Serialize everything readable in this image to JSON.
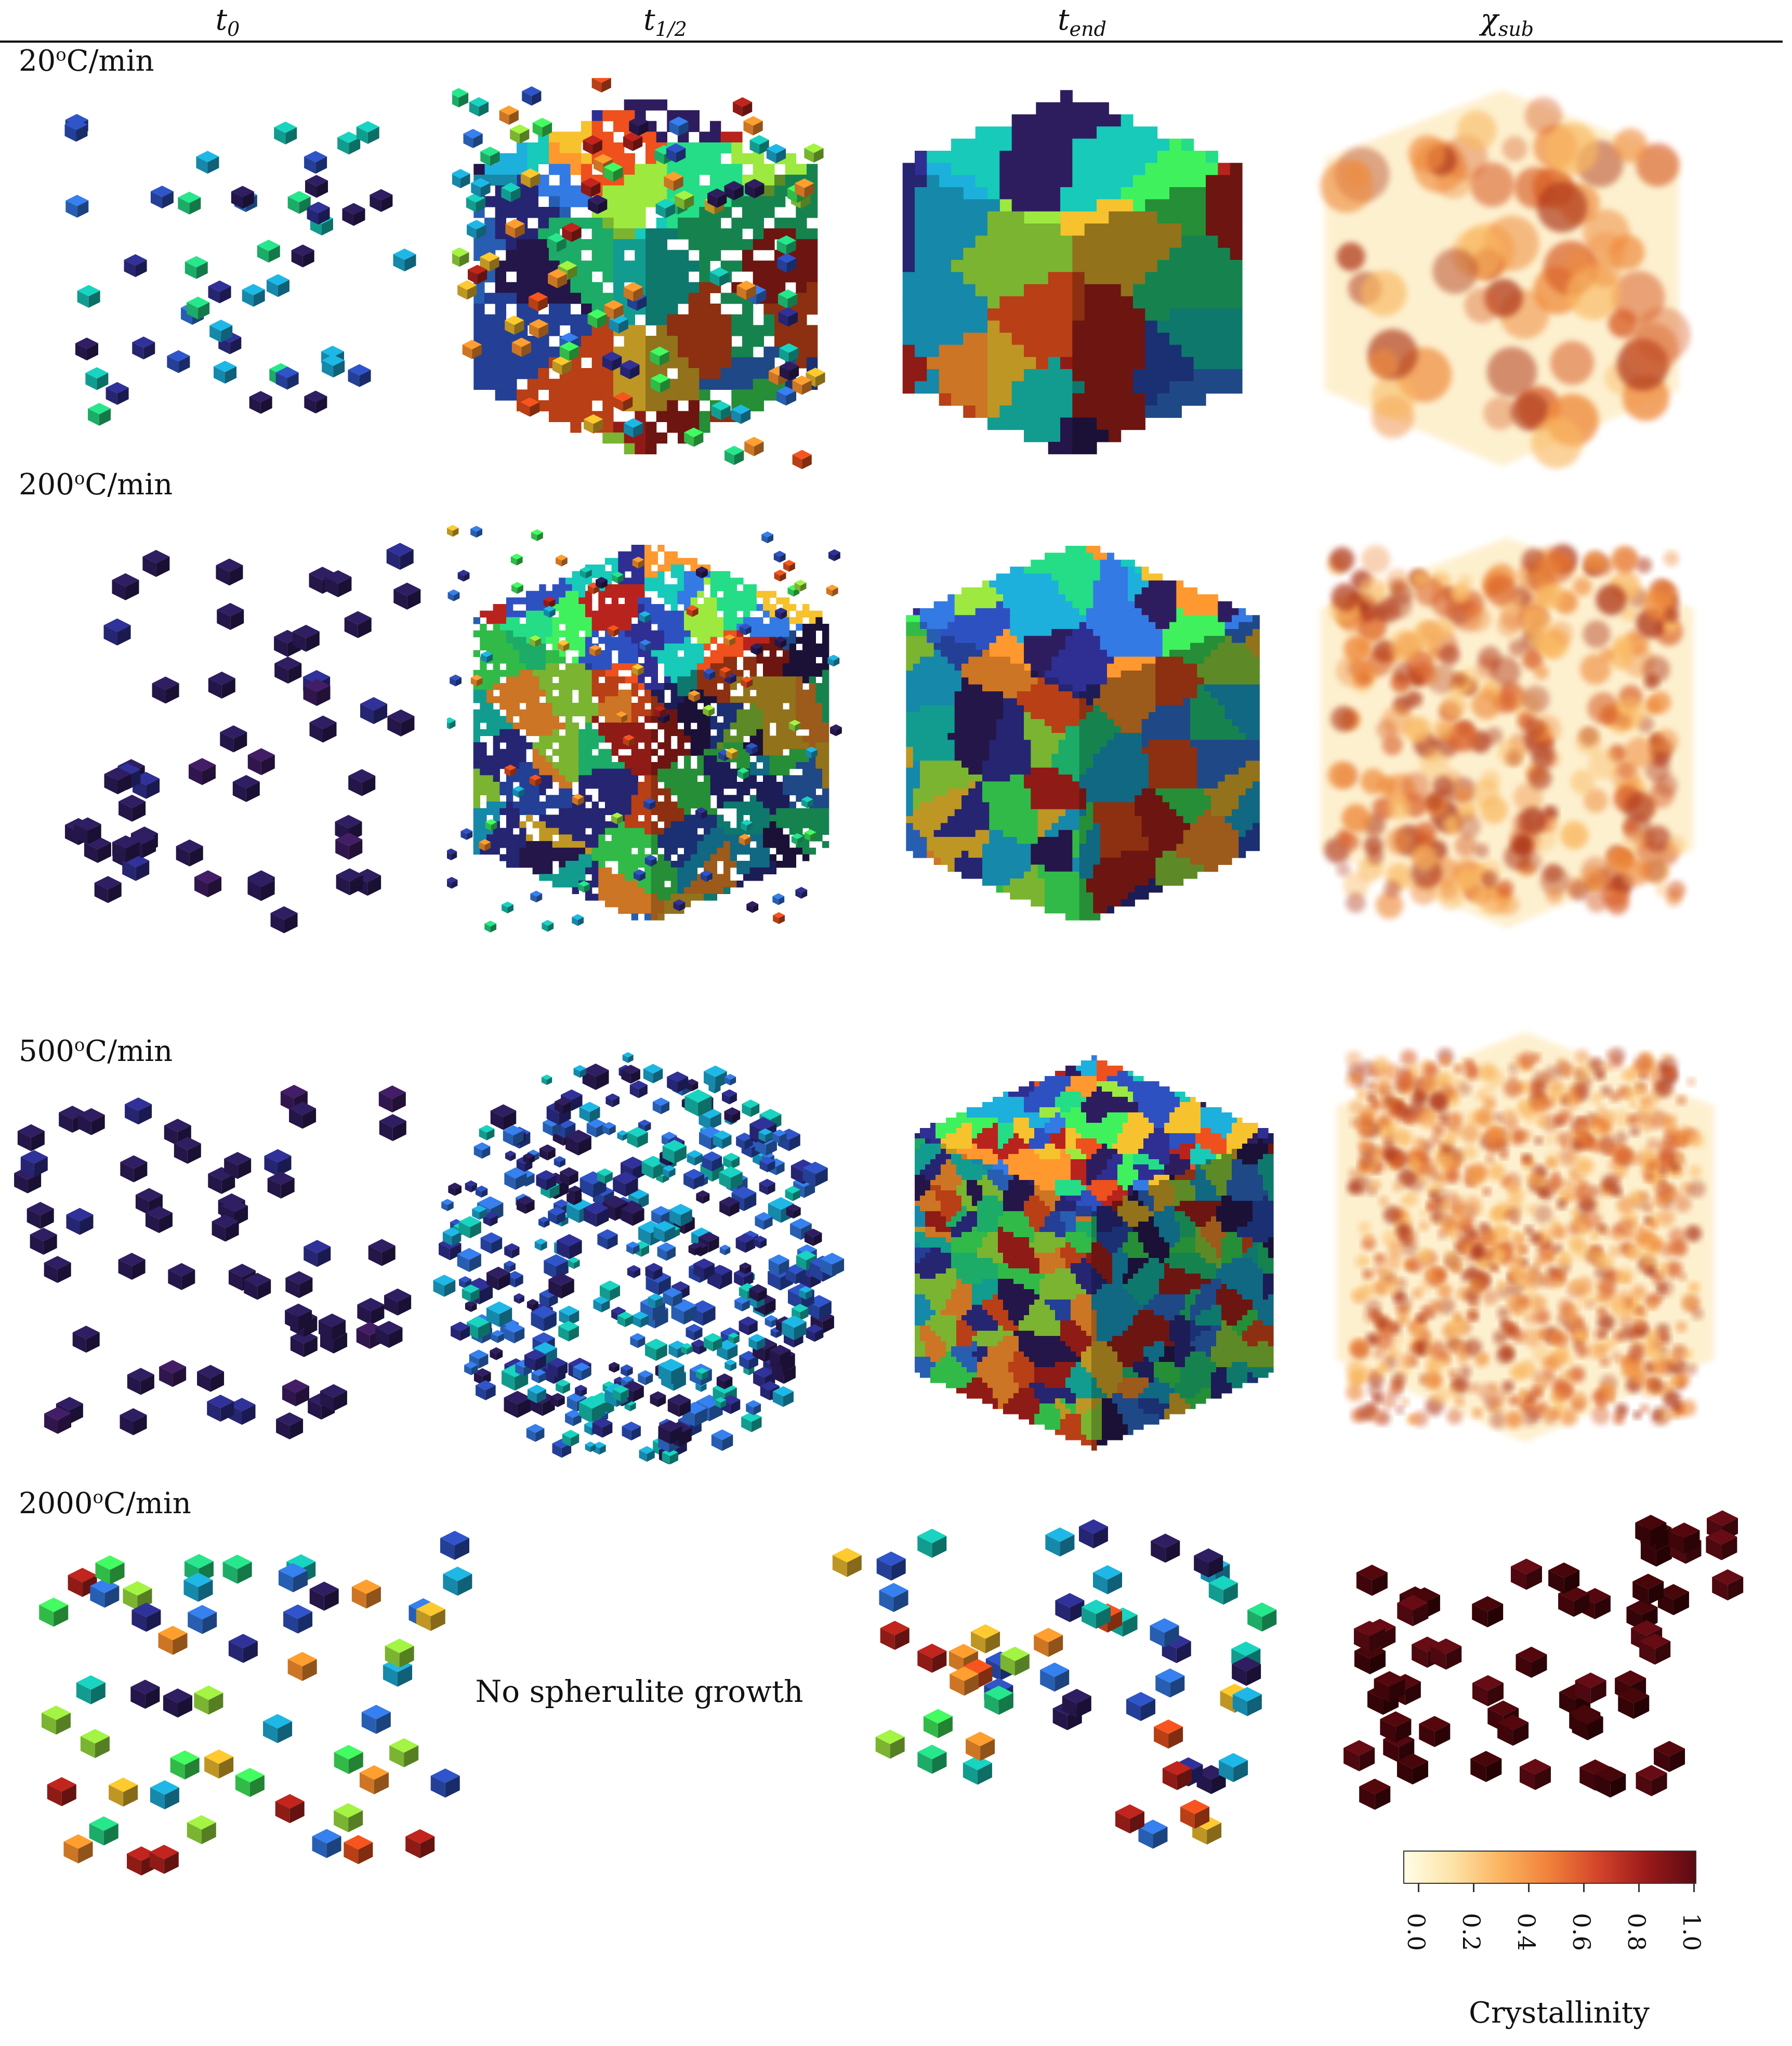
{
  "headers": [
    {
      "base": "t",
      "sub": "0"
    },
    {
      "base": "t",
      "sub": "1/2"
    },
    {
      "base": "t",
      "sub": "end"
    },
    {
      "base": "χ",
      "sub": "sub"
    }
  ],
  "rows": [
    {
      "rate": "20",
      "unit": "C/min",
      "sup": "o"
    },
    {
      "rate": "200",
      "unit": "C/min",
      "sup": "o"
    },
    {
      "rate": "500",
      "unit": "C/min",
      "sup": "o"
    },
    {
      "rate": "2000",
      "unit": "C/min",
      "sup": "o"
    }
  ],
  "no_growth_text": "No spherulite growth",
  "colorbar": {
    "title": "Crystallinity",
    "ticks": [
      "0.0",
      "0.2",
      "0.4",
      "0.6",
      "0.8",
      "1.0"
    ],
    "colors": [
      "#fffde7",
      "#fbb360",
      "#d3442a",
      "#5a0a12"
    ]
  },
  "palette": {
    "grain": [
      "#2a1a55",
      "#2b2b86",
      "#2a4ab0",
      "#2f6fd0",
      "#1aa0c8",
      "#15b8a8",
      "#22c97a",
      "#3adb55",
      "#8fd43a",
      "#e0b02a",
      "#f08a2a",
      "#d84a1a",
      "#a8201a"
    ],
    "crystal": [
      "#fde6b0",
      "#f9b860",
      "#ef8a3a",
      "#d9602a",
      "#b03a1e",
      "#6a0f12"
    ]
  }
}
